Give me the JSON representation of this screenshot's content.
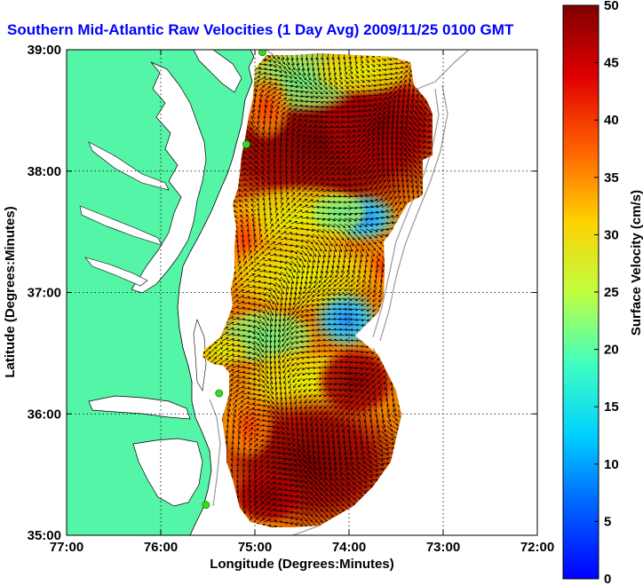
{
  "title": "Southern Mid-Atlantic Raw Velocities (1 Day Avg) 2009/11/25 0100 GMT",
  "map": {
    "xlabel": "Longitude (Degrees:Minutes)",
    "ylabel": "Latitude (Degrees:Minutes)",
    "x_ticks": [
      {
        "value": -77,
        "label": "77:00"
      },
      {
        "value": -76,
        "label": "76:00"
      },
      {
        "value": -75,
        "label": "75:00"
      },
      {
        "value": -74,
        "label": "74:00"
      },
      {
        "value": -73,
        "label": "73:00"
      },
      {
        "value": -72,
        "label": "72:00"
      }
    ],
    "y_ticks": [
      {
        "value": 35,
        "label": "35:00"
      },
      {
        "value": 36,
        "label": "36:00"
      },
      {
        "value": 37,
        "label": "37:00"
      },
      {
        "value": 38,
        "label": "38:00"
      },
      {
        "value": 39,
        "label": "39:00"
      }
    ],
    "xlim": [
      -77,
      -72
    ],
    "ylim": [
      35,
      39
    ],
    "grid": "dotted",
    "colors": {
      "land": "#55f5a8",
      "water": "#ffffff",
      "bathymetry": "#999999",
      "vectors": "#000000",
      "station": "#33dd22"
    },
    "stations": [
      {
        "lon": -74.92,
        "lat": 38.98
      },
      {
        "lon": -75.09,
        "lat": 38.22
      },
      {
        "lon": -75.38,
        "lat": 36.17
      },
      {
        "lon": -75.52,
        "lat": 35.25
      }
    ]
  },
  "colorbar": {
    "label": "Surface Velocity (cm/s)",
    "min": 0,
    "max": 50,
    "ticks": [
      {
        "value": 0,
        "label": "0"
      },
      {
        "value": 5,
        "label": "5"
      },
      {
        "value": 10,
        "label": "10"
      },
      {
        "value": 15,
        "label": "15"
      },
      {
        "value": 20,
        "label": "20"
      },
      {
        "value": 25,
        "label": "25"
      },
      {
        "value": 30,
        "label": "30"
      },
      {
        "value": 35,
        "label": "35"
      },
      {
        "value": 40,
        "label": "40"
      },
      {
        "value": 45,
        "label": "45"
      },
      {
        "value": 50,
        "label": "50"
      }
    ],
    "colormap": "jet"
  }
}
